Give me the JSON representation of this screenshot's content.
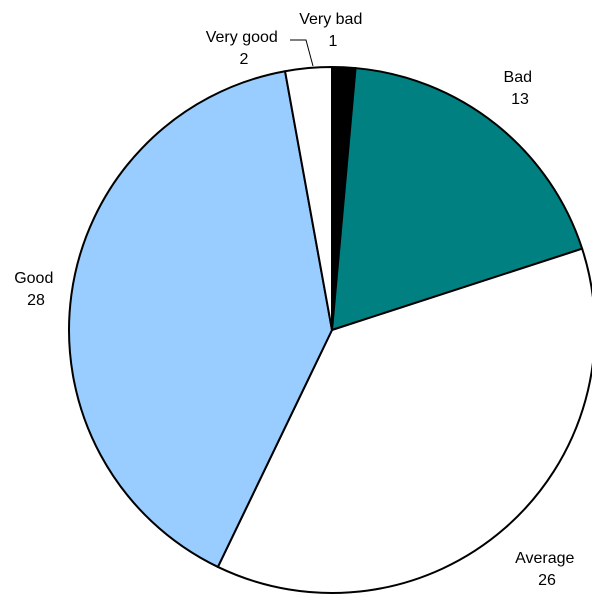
{
  "chart_data": {
    "type": "pie",
    "categories": [
      "Very bad",
      "Bad",
      "Average",
      "Good",
      "Very good"
    ],
    "values": [
      1,
      13,
      26,
      28,
      2
    ],
    "colors": [
      "#000000",
      "#008080",
      "#ffffff",
      "#99ccff",
      "#ffffff"
    ],
    "outline_color": "#000000",
    "start_angle": "12 o'clock",
    "direction": "clockwise",
    "labels": [
      {
        "name": "Very bad",
        "value": "1"
      },
      {
        "name": "Bad",
        "value": "13"
      },
      {
        "name": "Average",
        "value": "26"
      },
      {
        "name": "Good",
        "value": "28"
      },
      {
        "name": "Very good",
        "value": "2"
      }
    ]
  }
}
